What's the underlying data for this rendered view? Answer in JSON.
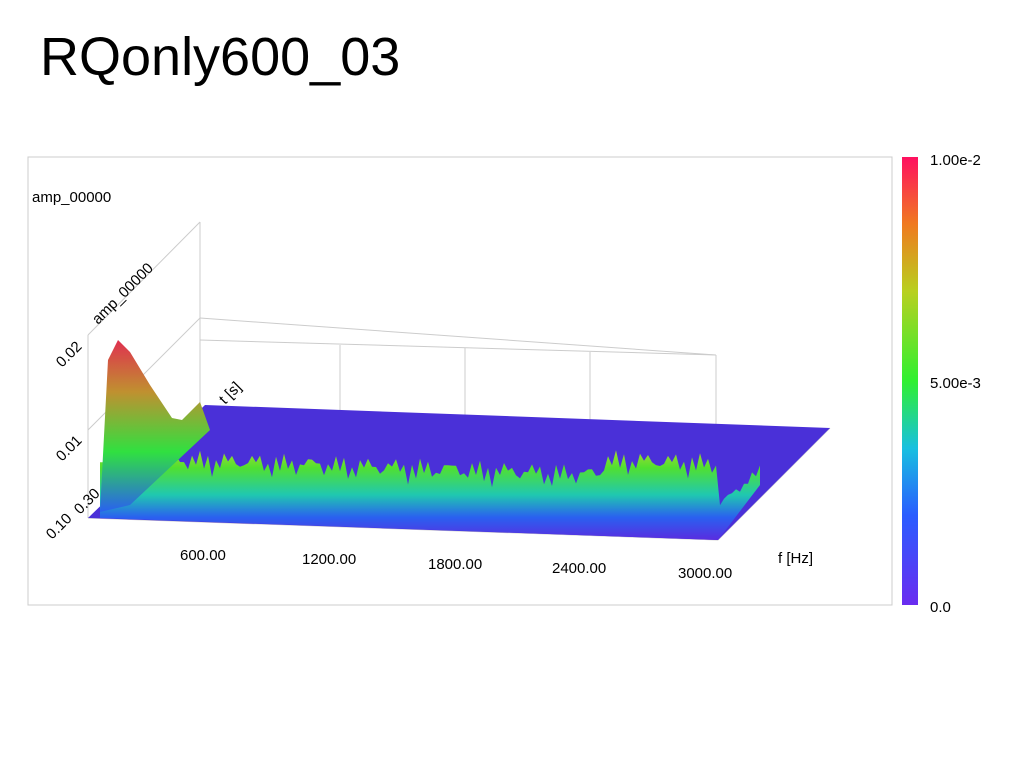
{
  "slide": {
    "title": "RQonly600_03"
  },
  "plot": {
    "title": "amp_00000",
    "z_axis_label": "amp_00000",
    "z_ticks": [
      "0.02",
      "0.01"
    ],
    "t_axis_label": "t [s]",
    "t_ticks": [
      "0.10",
      "0.30"
    ],
    "f_axis_label": "f [Hz]",
    "f_ticks": [
      "600.00",
      "1200.00",
      "1800.00",
      "2400.00",
      "3000.00"
    ]
  },
  "colorbar": {
    "labels": [
      "1.00e-2",
      "5.00e-3",
      "0.0"
    ]
  }
}
